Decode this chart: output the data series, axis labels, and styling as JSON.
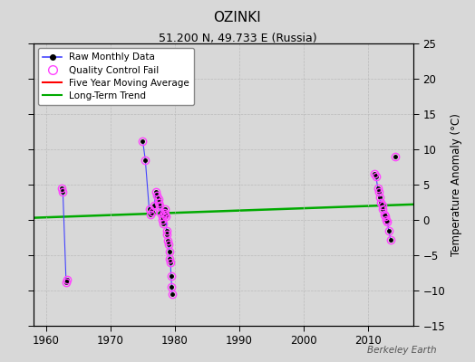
{
  "title": "OZINKI",
  "subtitle": "51.200 N, 49.733 E (Russia)",
  "ylabel": "Temperature Anomaly (°C)",
  "watermark": "Berkeley Earth",
  "xlim": [
    1958,
    2017
  ],
  "ylim": [
    -15,
    25
  ],
  "yticks": [
    -15,
    -10,
    -5,
    0,
    5,
    10,
    15,
    20,
    25
  ],
  "xticks": [
    1960,
    1970,
    1980,
    1990,
    2000,
    2010
  ],
  "plot_bg_color": "#d8d8d8",
  "fig_bg_color": "#d8d8d8",
  "blue_segments": [
    [
      [
        1962.4,
        4.5
      ],
      [
        1962.6,
        4.0
      ],
      [
        1963.1,
        -8.8
      ],
      [
        1963.3,
        -8.5
      ]
    ],
    [
      [
        1975.0,
        11.2
      ],
      [
        1975.4,
        8.5
      ],
      [
        1976.0,
        1.5
      ],
      [
        1976.2,
        0.8
      ],
      [
        1976.5,
        1.2
      ],
      [
        1976.8,
        2.0
      ],
      [
        1977.0,
        4.0
      ],
      [
        1977.2,
        3.5
      ],
      [
        1977.4,
        3.0
      ],
      [
        1977.5,
        2.5
      ],
      [
        1977.6,
        2.0
      ],
      [
        1977.8,
        1.0
      ],
      [
        1978.0,
        0.5
      ],
      [
        1978.1,
        0.0
      ],
      [
        1978.2,
        -0.5
      ],
      [
        1978.3,
        1.0
      ],
      [
        1978.4,
        0.8
      ],
      [
        1978.5,
        1.5
      ],
      [
        1978.6,
        0.5
      ],
      [
        1978.7,
        -1.5
      ],
      [
        1978.8,
        -2.0
      ],
      [
        1978.9,
        -3.0
      ],
      [
        1979.0,
        -3.5
      ],
      [
        1979.1,
        -4.5
      ],
      [
        1979.2,
        -5.5
      ],
      [
        1979.3,
        -6.0
      ],
      [
        1979.4,
        -8.0
      ],
      [
        1979.5,
        -9.5
      ],
      [
        1979.6,
        -10.5
      ]
    ],
    [
      [
        2011.0,
        6.5
      ],
      [
        2011.2,
        6.2
      ],
      [
        2011.5,
        4.5
      ],
      [
        2011.6,
        4.0
      ],
      [
        2011.8,
        3.2
      ],
      [
        2012.0,
        2.5
      ],
      [
        2012.2,
        2.0
      ],
      [
        2012.3,
        1.5
      ],
      [
        2012.5,
        0.8
      ],
      [
        2012.6,
        0.5
      ],
      [
        2012.8,
        0.0
      ],
      [
        2013.0,
        -0.3
      ],
      [
        2013.2,
        -1.5
      ],
      [
        2013.5,
        -2.8
      ]
    ]
  ],
  "isolated_qc": [
    [
      2014.2,
      9.0
    ]
  ],
  "trend_x": [
    1958,
    2017
  ],
  "trend_y": [
    0.3,
    2.2
  ],
  "raw_color": "#4444ff",
  "qc_color": "#ff44ff",
  "ma_color": "#ff0000",
  "trend_color": "#00aa00",
  "dot_color": "#000000",
  "grid_color": "#bbbbbb"
}
